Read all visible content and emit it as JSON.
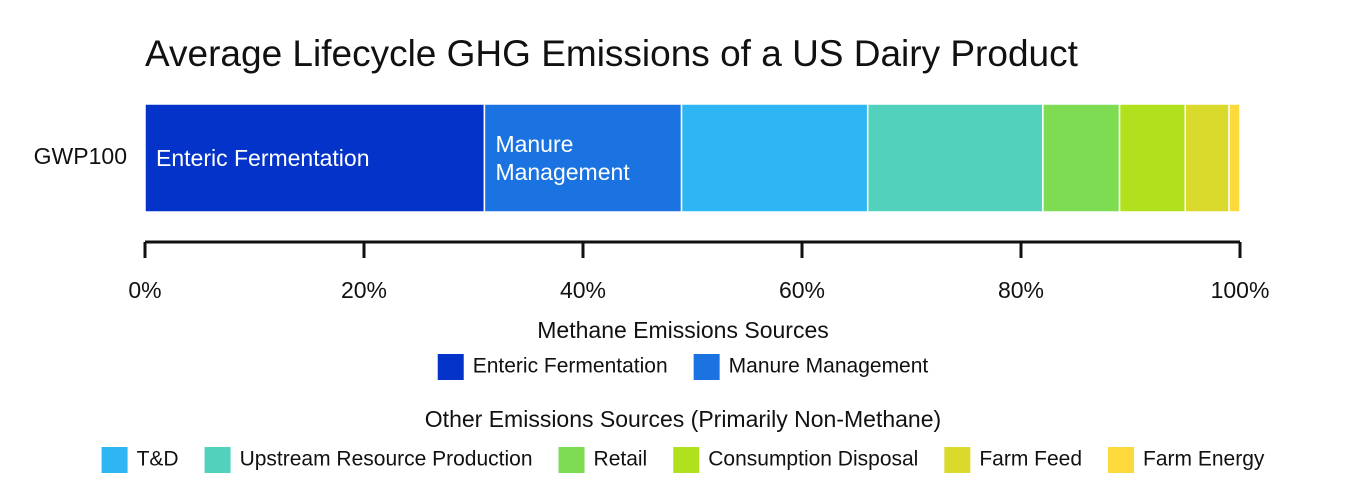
{
  "chart_data": {
    "type": "stacked-barh",
    "title": "Average Lifecycle GHG Emissions of a US Dairy Product",
    "categories": [
      "GWP100"
    ],
    "xlim": [
      0,
      100
    ],
    "xticks": [
      {
        "value": 0,
        "label": "0%"
      },
      {
        "value": 20,
        "label": "20%"
      },
      {
        "value": 40,
        "label": "40%"
      },
      {
        "value": 60,
        "label": "60%"
      },
      {
        "value": 80,
        "label": "80%"
      },
      {
        "value": 100,
        "label": "100%"
      }
    ],
    "groups": [
      {
        "title": "Methane Emissions Sources",
        "labels_in_bar": true,
        "series": [
          {
            "name": "Enteric Fermentation",
            "color": "#0433c9",
            "values": [
              31
            ]
          },
          {
            "name": "Manure Management",
            "color": "#1a73e0",
            "values": [
              18
            ]
          }
        ]
      },
      {
        "title": "Other Emissions Sources (Primarily Non-Methane)",
        "labels_in_bar": false,
        "series": [
          {
            "name": "T&D",
            "color": "#2db6f3",
            "values": [
              17
            ]
          },
          {
            "name": "Upstream Resource Production",
            "color": "#52d2bd",
            "values": [
              16
            ]
          },
          {
            "name": "Retail",
            "color": "#7ddc52",
            "values": [
              7
            ]
          },
          {
            "name": "Consumption Disposal",
            "color": "#b1e11d",
            "values": [
              6
            ]
          },
          {
            "name": "Farm Feed",
            "color": "#d9da2b",
            "values": [
              4
            ]
          },
          {
            "name": "Farm Energy",
            "color": "#fdd93b",
            "values": [
              1
            ]
          }
        ]
      }
    ]
  }
}
